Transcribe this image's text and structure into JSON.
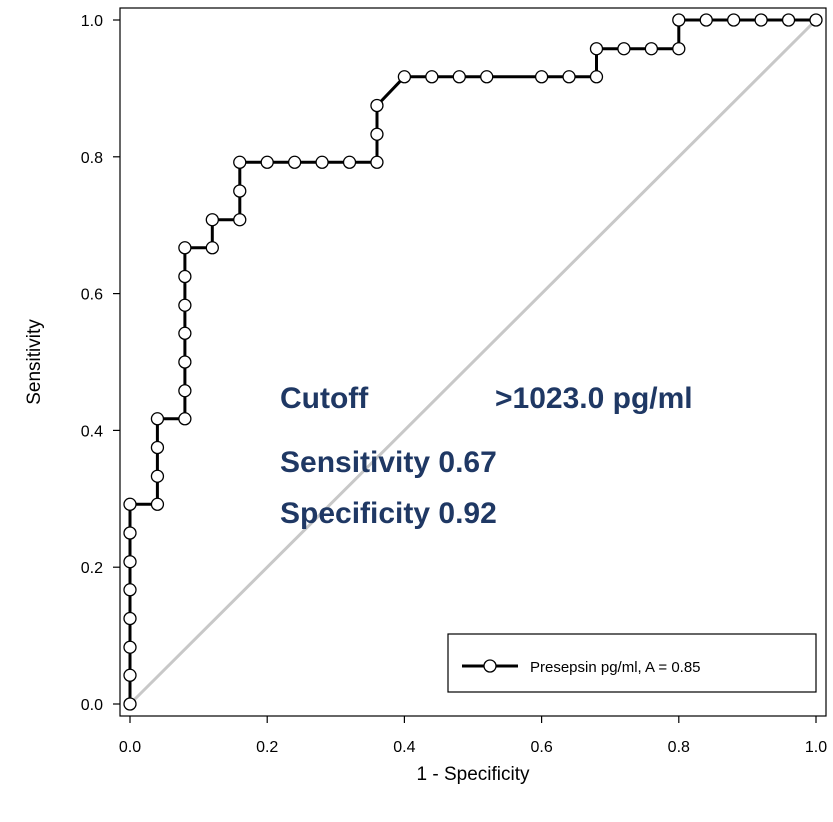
{
  "chart_data": {
    "type": "line",
    "title": "",
    "xlabel": "1 - Specificity",
    "ylabel": "Sensitivity",
    "xlim": [
      0,
      1
    ],
    "ylim": [
      0,
      1
    ],
    "x_ticks": [
      "0.0",
      "0.2",
      "0.4",
      "0.6",
      "0.8",
      "1.0"
    ],
    "y_ticks": [
      "0.0",
      "0.2",
      "0.4",
      "0.6",
      "0.8",
      "1.0"
    ],
    "grid": false,
    "legend_position": "bottom-right",
    "annotations": {
      "line1_label": "Cutoff",
      "line1_value": ">1023.0 pg/ml",
      "line2": "Sensitivity  0.67",
      "line3": "Specificity  0.92",
      "color": "#1f3864"
    },
    "reference_line": {
      "x": [
        0,
        1
      ],
      "y": [
        0,
        1
      ],
      "color": "#c8c8c8"
    },
    "series": [
      {
        "name": "Presepsin pg/ml, A = 0.85",
        "color": "#000000",
        "marker": "open-circle",
        "x": [
          0,
          0,
          0,
          0,
          0,
          0,
          0,
          0,
          0.04,
          0.04,
          0.04,
          0.04,
          0.08,
          0.08,
          0.08,
          0.08,
          0.08,
          0.08,
          0.08,
          0.12,
          0.12,
          0.16,
          0.16,
          0.16,
          0.2,
          0.24,
          0.28,
          0.32,
          0.36,
          0.36,
          0.36,
          0.4,
          0.44,
          0.48,
          0.52,
          0.6,
          0.64,
          0.68,
          0.68,
          0.72,
          0.76,
          0.8,
          0.8,
          0.84,
          0.88,
          0.92,
          0.96,
          1.0
        ],
        "y": [
          0,
          0.042,
          0.083,
          0.125,
          0.167,
          0.208,
          0.25,
          0.292,
          0.292,
          0.333,
          0.375,
          0.417,
          0.417,
          0.458,
          0.5,
          0.542,
          0.583,
          0.625,
          0.667,
          0.667,
          0.708,
          0.708,
          0.75,
          0.792,
          0.792,
          0.792,
          0.792,
          0.792,
          0.792,
          0.833,
          0.875,
          0.917,
          0.917,
          0.917,
          0.917,
          0.917,
          0.917,
          0.917,
          0.958,
          0.958,
          0.958,
          0.958,
          1.0,
          1.0,
          1.0,
          1.0,
          1.0,
          1.0
        ]
      }
    ]
  }
}
